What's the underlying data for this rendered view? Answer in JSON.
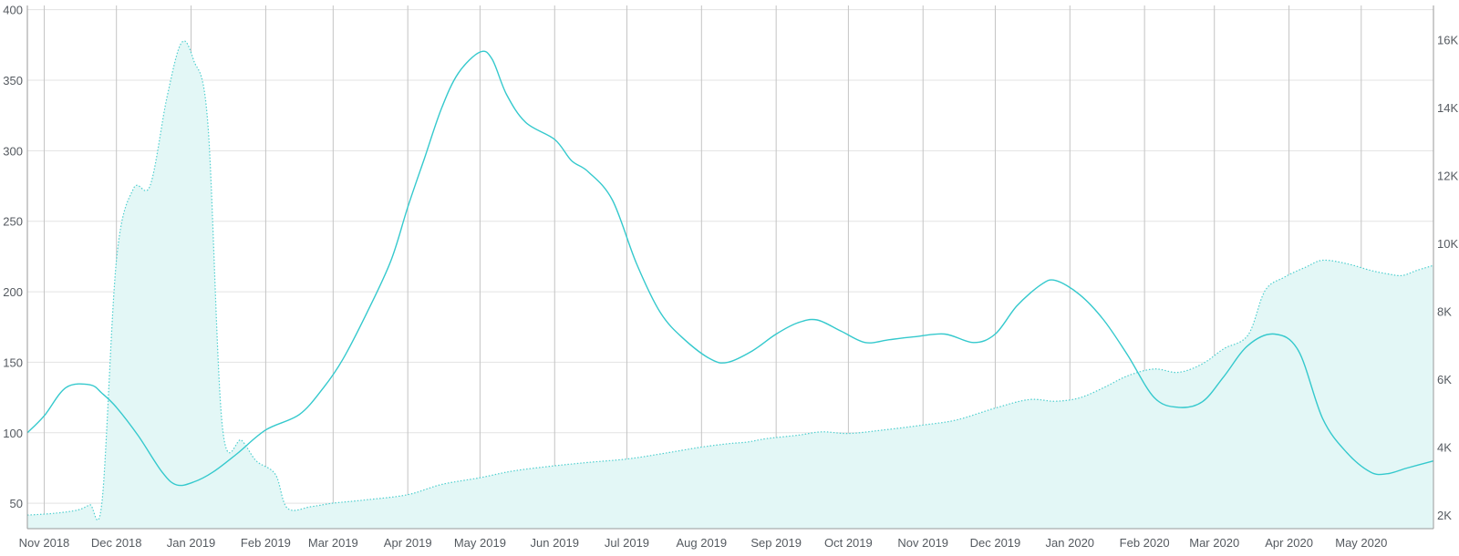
{
  "chart_data": {
    "type": "line",
    "title": "",
    "xlabel": "",
    "ylabel": "",
    "grid": true,
    "x_ticks": [
      "Nov 2018",
      "Dec 2018",
      "Jan 2019",
      "Feb 2019",
      "Mar 2019",
      "Apr 2019",
      "May 2019",
      "Jun 2019",
      "Jul 2019",
      "Aug 2019",
      "Sep 2019",
      "Oct 2019",
      "Nov 2019",
      "Dec 2019",
      "Jan 2020",
      "Feb 2020",
      "Mar 2020",
      "Apr 2020",
      "May 2020"
    ],
    "xlim": [
      "2018-10-25",
      "2020-05-31"
    ],
    "y_left": {
      "ticks": [
        50,
        100,
        150,
        200,
        250,
        300,
        350,
        400
      ],
      "tick_labels": [
        "50",
        "100",
        "150",
        "200",
        "250",
        "300",
        "350",
        "400"
      ],
      "ylim": [
        32,
        403
      ]
    },
    "y_right": {
      "ticks": [
        2000,
        4000,
        6000,
        8000,
        10000,
        12000,
        14000,
        16000
      ],
      "tick_labels": [
        "2K",
        "4K",
        "6K",
        "8K",
        "10K",
        "12K",
        "14K",
        "16K"
      ],
      "ylim": [
        1600,
        17000
      ]
    },
    "colors": {
      "line": "#35c9cd",
      "area_fill": "#e3f7f6",
      "area_stroke": "#4fcfcf"
    },
    "series": [
      {
        "axis": "left",
        "style": "solid-line",
        "points": [
          [
            "2018-10-25",
            100
          ],
          [
            "2018-11-01",
            112
          ],
          [
            "2018-11-10",
            132
          ],
          [
            "2018-11-20",
            134
          ],
          [
            "2018-11-25",
            128
          ],
          [
            "2018-12-01",
            118
          ],
          [
            "2018-12-10",
            98
          ],
          [
            "2018-12-20",
            72
          ],
          [
            "2018-12-26",
            63
          ],
          [
            "2019-01-02",
            65
          ],
          [
            "2019-01-10",
            72
          ],
          [
            "2019-01-20",
            85
          ],
          [
            "2019-02-01",
            102
          ],
          [
            "2019-02-15",
            113
          ],
          [
            "2019-02-25",
            132
          ],
          [
            "2019-03-05",
            152
          ],
          [
            "2019-03-15",
            185
          ],
          [
            "2019-03-25",
            222
          ],
          [
            "2019-04-01",
            260
          ],
          [
            "2019-04-08",
            295
          ],
          [
            "2019-04-15",
            330
          ],
          [
            "2019-04-22",
            355
          ],
          [
            "2019-05-01",
            370
          ],
          [
            "2019-05-06",
            365
          ],
          [
            "2019-05-12",
            340
          ],
          [
            "2019-05-20",
            320
          ],
          [
            "2019-06-01",
            308
          ],
          [
            "2019-06-08",
            293
          ],
          [
            "2019-06-15",
            285
          ],
          [
            "2019-06-25",
            265
          ],
          [
            "2019-07-05",
            220
          ],
          [
            "2019-07-15",
            185
          ],
          [
            "2019-07-25",
            166
          ],
          [
            "2019-08-05",
            152
          ],
          [
            "2019-08-12",
            150
          ],
          [
            "2019-08-22",
            158
          ],
          [
            "2019-09-01",
            170
          ],
          [
            "2019-09-10",
            178
          ],
          [
            "2019-09-18",
            180
          ],
          [
            "2019-09-28",
            172
          ],
          [
            "2019-10-08",
            164
          ],
          [
            "2019-10-18",
            166
          ],
          [
            "2019-10-28",
            168
          ],
          [
            "2019-11-10",
            170
          ],
          [
            "2019-11-22",
            164
          ],
          [
            "2019-12-01",
            170
          ],
          [
            "2019-12-10",
            190
          ],
          [
            "2019-12-20",
            205
          ],
          [
            "2019-12-26",
            208
          ],
          [
            "2020-01-05",
            198
          ],
          [
            "2020-01-15",
            180
          ],
          [
            "2020-01-25",
            155
          ],
          [
            "2020-02-05",
            125
          ],
          [
            "2020-02-15",
            118
          ],
          [
            "2020-02-25",
            122
          ],
          [
            "2020-03-05",
            140
          ],
          [
            "2020-03-15",
            162
          ],
          [
            "2020-03-26",
            170
          ],
          [
            "2020-04-05",
            158
          ],
          [
            "2020-04-15",
            110
          ],
          [
            "2020-04-25",
            86
          ],
          [
            "2020-05-05",
            72
          ],
          [
            "2020-05-12",
            71
          ],
          [
            "2020-05-20",
            75
          ],
          [
            "2020-05-31",
            80
          ]
        ]
      },
      {
        "axis": "right",
        "style": "dotted-area",
        "points": [
          [
            "2018-10-25",
            2000
          ],
          [
            "2018-11-05",
            2050
          ],
          [
            "2018-11-15",
            2150
          ],
          [
            "2018-11-20",
            2300
          ],
          [
            "2018-11-25",
            2400
          ],
          [
            "2018-12-01",
            9500
          ],
          [
            "2018-12-08",
            11600
          ],
          [
            "2018-12-15",
            11700
          ],
          [
            "2018-12-22",
            14300
          ],
          [
            "2018-12-28",
            15900
          ],
          [
            "2019-01-02",
            15400
          ],
          [
            "2019-01-08",
            13500
          ],
          [
            "2019-01-14",
            4600
          ],
          [
            "2019-01-22",
            4200
          ],
          [
            "2019-01-28",
            3600
          ],
          [
            "2019-02-05",
            3200
          ],
          [
            "2019-02-10",
            2200
          ],
          [
            "2019-02-20",
            2250
          ],
          [
            "2019-03-01",
            2350
          ],
          [
            "2019-03-15",
            2450
          ],
          [
            "2019-04-01",
            2600
          ],
          [
            "2019-04-15",
            2900
          ],
          [
            "2019-05-01",
            3100
          ],
          [
            "2019-05-15",
            3300
          ],
          [
            "2019-06-01",
            3450
          ],
          [
            "2019-06-15",
            3550
          ],
          [
            "2019-07-01",
            3650
          ],
          [
            "2019-07-15",
            3800
          ],
          [
            "2019-08-01",
            4000
          ],
          [
            "2019-08-12",
            4100
          ],
          [
            "2019-08-20",
            4150
          ],
          [
            "2019-08-28",
            4250
          ],
          [
            "2019-09-10",
            4350
          ],
          [
            "2019-09-20",
            4450
          ],
          [
            "2019-10-01",
            4400
          ],
          [
            "2019-10-15",
            4500
          ],
          [
            "2019-11-01",
            4650
          ],
          [
            "2019-11-15",
            4800
          ],
          [
            "2019-12-01",
            5150
          ],
          [
            "2019-12-15",
            5400
          ],
          [
            "2019-12-26",
            5350
          ],
          [
            "2020-01-05",
            5450
          ],
          [
            "2020-01-15",
            5750
          ],
          [
            "2020-01-25",
            6100
          ],
          [
            "2020-02-05",
            6300
          ],
          [
            "2020-02-15",
            6200
          ],
          [
            "2020-02-25",
            6450
          ],
          [
            "2020-03-05",
            6900
          ],
          [
            "2020-03-15",
            7300
          ],
          [
            "2020-03-22",
            8600
          ],
          [
            "2020-03-30",
            9000
          ],
          [
            "2020-04-08",
            9300
          ],
          [
            "2020-04-15",
            9500
          ],
          [
            "2020-04-25",
            9400
          ],
          [
            "2020-05-05",
            9200
          ],
          [
            "2020-05-12",
            9100
          ],
          [
            "2020-05-18",
            9050
          ],
          [
            "2020-05-24",
            9200
          ],
          [
            "2020-05-31",
            9350
          ]
        ]
      }
    ]
  }
}
